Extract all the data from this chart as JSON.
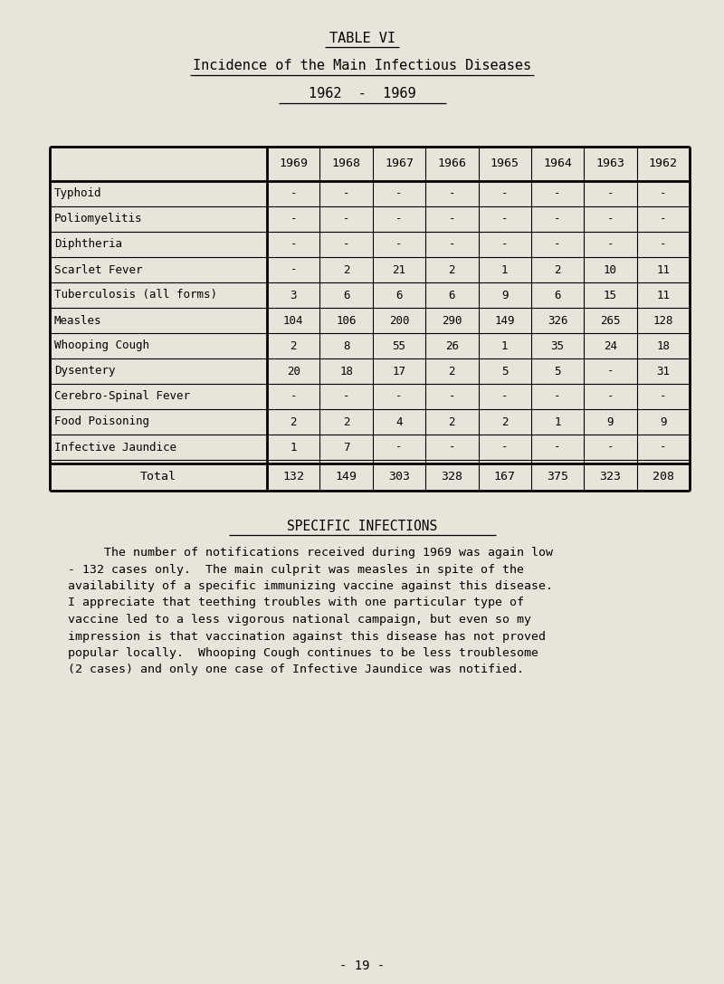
{
  "bg_color": "#e8e4da",
  "title1": "TABLE VI",
  "title2": "Incidence of the Main Infectious Diseases",
  "title3": "1962  -  1969",
  "section_heading": "SPECIFIC INFECTIONS",
  "para_lines": [
    "     The number of notifications received during 1969 was again low",
    "- 132 cases only.  The main culprit was measles in spite of the",
    "availability of a specific immunizing vaccine against this disease.",
    "I appreciate that teething troubles with one particular type of",
    "vaccine led to a less vigorous national campaign, but even so my",
    "impression is that vaccination against this disease has not proved",
    "popular locally.  Whooping Cough continues to be less troublesome",
    "(2 cases) and only one case of Infective Jaundice was notified."
  ],
  "page_number": "- 19 -",
  "columns": [
    "1969",
    "1968",
    "1967",
    "1966",
    "1965",
    "1964",
    "1963",
    "1962"
  ],
  "rows": [
    {
      "label": "Typhoid",
      "values": [
        "-",
        "-",
        "-",
        "-",
        "-",
        "-",
        "-",
        "-"
      ]
    },
    {
      "label": "Poliomyelitis",
      "values": [
        "-",
        "-",
        "-",
        "-",
        "-",
        "-",
        "-",
        "-"
      ]
    },
    {
      "label": "Diphtheria",
      "values": [
        "-",
        "-",
        "-",
        "-",
        "-",
        "-",
        "-",
        "-"
      ]
    },
    {
      "label": "Scarlet Fever",
      "values": [
        "-",
        "2",
        "21",
        "2",
        "1",
        "2",
        "10",
        "11"
      ]
    },
    {
      "label": "Tuberculosis (all forms)",
      "values": [
        "3",
        "6",
        "6",
        "6",
        "9",
        "6",
        "15",
        "11"
      ]
    },
    {
      "label": "Measles",
      "values": [
        "104",
        "106",
        "200",
        "290",
        "149",
        "326",
        "265",
        "128"
      ]
    },
    {
      "label": "Whooping Cough",
      "values": [
        "2",
        "8",
        "55",
        "26",
        "1",
        "35",
        "24",
        "18"
      ]
    },
    {
      "label": "Dysentery",
      "values": [
        "20",
        "18",
        "17",
        "2",
        "5",
        "5",
        "-",
        "31"
      ]
    },
    {
      "label": "Cerebro-Spinal Fever",
      "values": [
        "-",
        "-",
        "-",
        "-",
        "-",
        "-",
        "-",
        "-"
      ]
    },
    {
      "label": "Food Poisoning",
      "values": [
        "2",
        "2",
        "4",
        "2",
        "2",
        "1",
        "9",
        "9"
      ]
    },
    {
      "label": "Infective Jaundice",
      "values": [
        "1",
        "7",
        "-",
        "-",
        "-",
        "-",
        "-",
        "-"
      ]
    }
  ],
  "total_row": {
    "label": "Total",
    "values": [
      "132",
      "149",
      "303",
      "328",
      "167",
      "375",
      "323",
      "208"
    ]
  }
}
